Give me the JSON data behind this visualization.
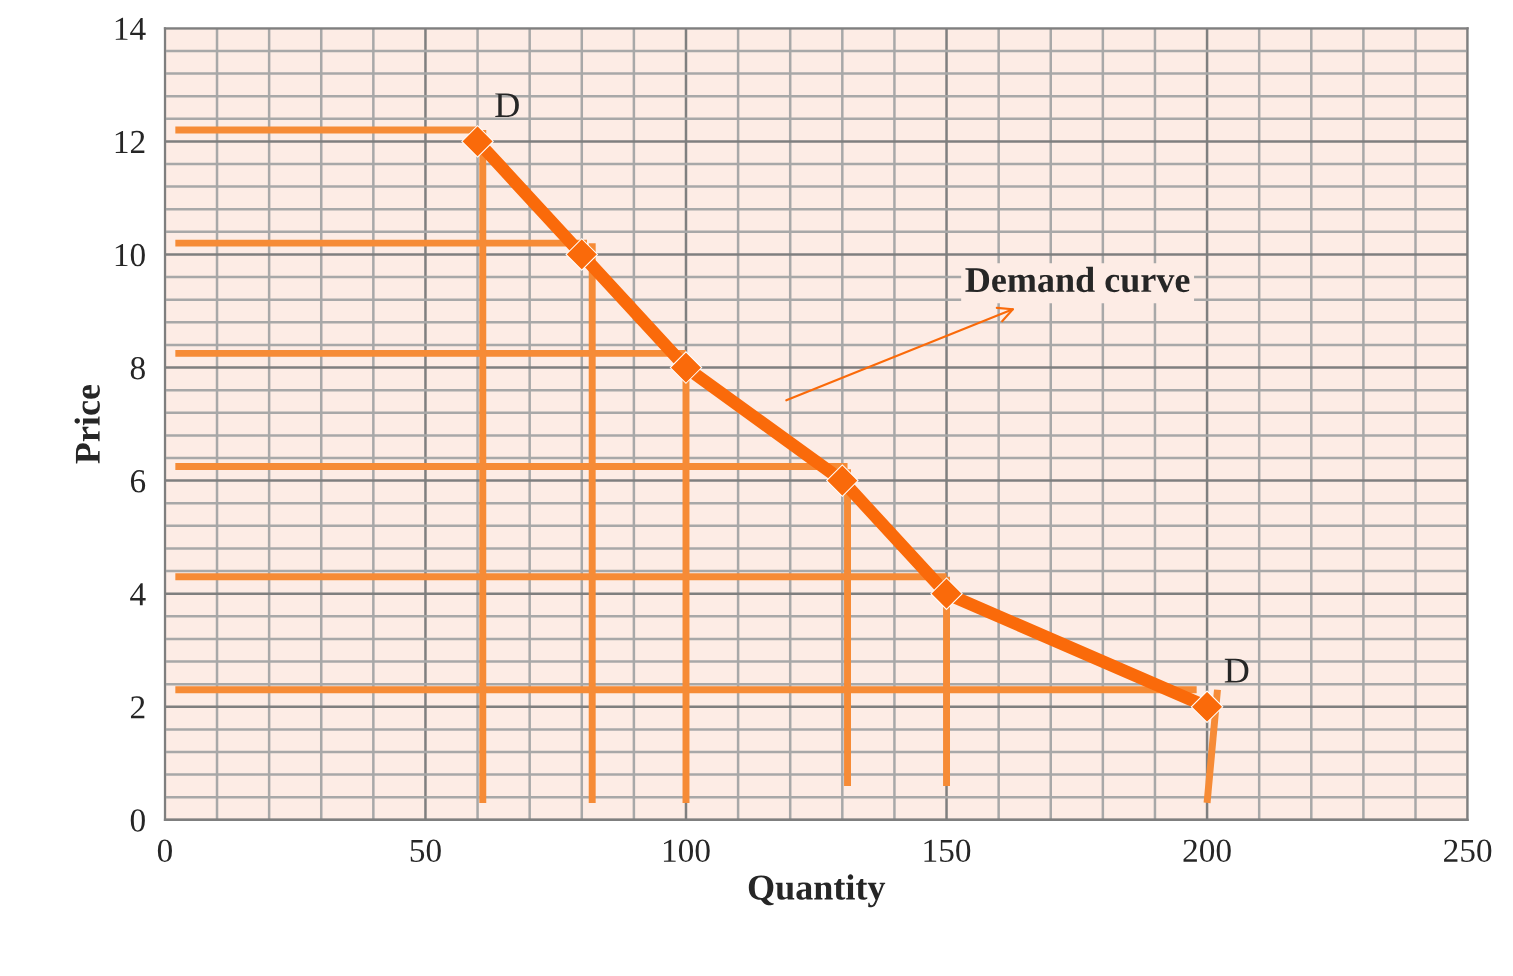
{
  "chart_data": {
    "type": "line",
    "xlabel": "Quantity",
    "ylabel": "Price",
    "xlim": [
      0,
      250
    ],
    "xticks": [
      0,
      50,
      100,
      150,
      200,
      250
    ],
    "ylim": [
      0,
      14
    ],
    "yticks": [
      0,
      2,
      4,
      6,
      8,
      10,
      12,
      14
    ],
    "grid": true,
    "series": [
      {
        "color": "#f68b36",
        "x": [
          2,
          60
        ],
        "values": [
          12.2,
          12.2
        ],
        "marker": "none"
      },
      {
        "color": "#f68b36",
        "x": [
          2,
          81
        ],
        "values": [
          10.2,
          10.2
        ],
        "marker": "none"
      },
      {
        "color": "#f68b36",
        "x": [
          2,
          100
        ],
        "values": [
          8.25,
          8.25
        ],
        "marker": "none"
      },
      {
        "color": "#f68b36",
        "x": [
          2,
          131
        ],
        "values": [
          6.25,
          6.25
        ],
        "marker": "none"
      },
      {
        "color": "#f68b36",
        "x": [
          2,
          150
        ],
        "values": [
          4.3,
          4.3
        ],
        "marker": "none"
      },
      {
        "color": "#f68b36",
        "x": [
          2,
          198
        ],
        "values": [
          2.3,
          2.3
        ],
        "marker": "none"
      },
      {
        "color": "#f68b36",
        "x": [
          61,
          61
        ],
        "values": [
          12.2,
          0.3
        ],
        "marker": "none"
      },
      {
        "color": "#f68b36",
        "x": [
          82,
          82
        ],
        "values": [
          10.2,
          0.3
        ],
        "marker": "none"
      },
      {
        "color": "#f68b36",
        "x": [
          100,
          100
        ],
        "values": [
          8.2,
          0.3
        ],
        "marker": "none"
      },
      {
        "color": "#f68b36",
        "x": [
          131,
          131
        ],
        "values": [
          6.2,
          0.6
        ],
        "marker": "none"
      },
      {
        "color": "#f68b36",
        "x": [
          150,
          150
        ],
        "values": [
          4.3,
          0.6
        ],
        "marker": "none"
      },
      {
        "color": "#f68b36",
        "x": [
          202,
          200
        ],
        "values": [
          2.3,
          0.3
        ],
        "marker": "none"
      },
      {
        "color": "#fa6a0a",
        "x": [
          60,
          80,
          100,
          130,
          150,
          200
        ],
        "values": [
          12,
          10,
          8,
          6,
          4,
          2
        ],
        "marker": "diamond"
      }
    ],
    "annotations": [
      {
        "text": "D",
        "x": 60,
        "y": 12
      },
      {
        "text": "D",
        "x": 200,
        "y": 2
      },
      "Demand curve"
    ]
  }
}
